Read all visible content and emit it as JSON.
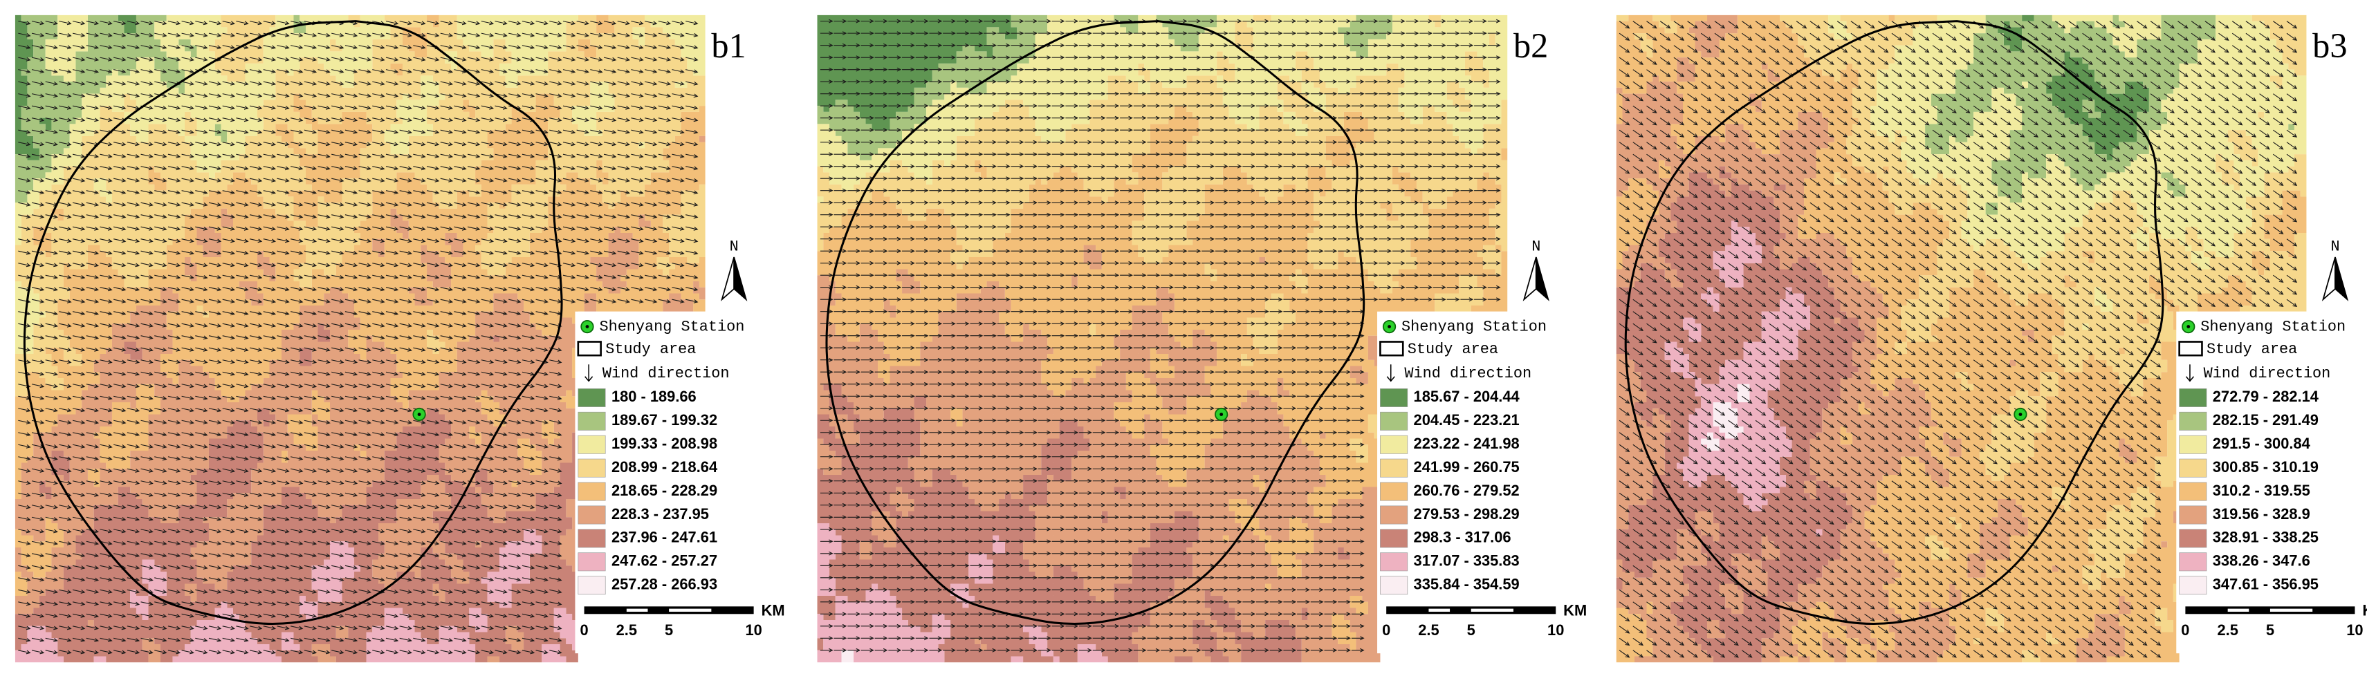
{
  "panels": [
    {
      "label": "b1",
      "north": "N",
      "legend": {
        "station": "Shenyang Station",
        "study_area": "Study area",
        "wind": "Wind direction",
        "classes": [
          {
            "label": "180 - 189.66",
            "color": "#5f9552"
          },
          {
            "label": "189.67 - 199.32",
            "color": "#a8c57f"
          },
          {
            "label": "199.33 - 208.98",
            "color": "#f1eb9f"
          },
          {
            "label": "208.99 - 218.64",
            "color": "#f6d88c"
          },
          {
            "label": "218.65 - 228.29",
            "color": "#f3bf79"
          },
          {
            "label": "228.3 - 237.95",
            "color": "#e3a27e"
          },
          {
            "label": "237.96 - 247.61",
            "color": "#c98377"
          },
          {
            "label": "247.62 - 257.27",
            "color": "#eeb2c1"
          },
          {
            "label": "257.28 - 266.93",
            "color": "#faeef2"
          }
        ]
      },
      "scale_bar": {
        "ticks": [
          "0",
          "2.5",
          "5",
          "10"
        ],
        "unit": "KM"
      }
    },
    {
      "label": "b2",
      "north": "N",
      "legend": {
        "station": "Shenyang Station",
        "study_area": "Study area",
        "wind": "Wind direction",
        "classes": [
          {
            "label": "185.67 - 204.44",
            "color": "#5f9552"
          },
          {
            "label": "204.45 - 223.21",
            "color": "#a8c57f"
          },
          {
            "label": "223.22 - 241.98",
            "color": "#f1eb9f"
          },
          {
            "label": "241.99 - 260.75",
            "color": "#f6d88c"
          },
          {
            "label": "260.76 - 279.52",
            "color": "#f3bf79"
          },
          {
            "label": "279.53 - 298.29",
            "color": "#e3a27e"
          },
          {
            "label": "298.3 - 317.06",
            "color": "#c98377"
          },
          {
            "label": "317.07 - 335.83",
            "color": "#eeb2c1"
          },
          {
            "label": "335.84 - 354.59",
            "color": "#faeef2"
          }
        ]
      },
      "scale_bar": {
        "ticks": [
          "0",
          "2.5",
          "5",
          "10"
        ],
        "unit": "KM"
      }
    },
    {
      "label": "b3",
      "north": "N",
      "legend": {
        "station": "Shenyang Station",
        "study_area": "Study area",
        "wind": "Wind direction",
        "classes": [
          {
            "label": "272.79 - 282.14",
            "color": "#5f9552"
          },
          {
            "label": "282.15 - 291.49",
            "color": "#a8c57f"
          },
          {
            "label": "291.5 - 300.84",
            "color": "#f1eb9f"
          },
          {
            "label": "300.85 - 310.19",
            "color": "#f6d88c"
          },
          {
            "label": "310.2 - 319.55",
            "color": "#f3bf79"
          },
          {
            "label": "319.56 - 328.9",
            "color": "#e3a27e"
          },
          {
            "label": "328.91 - 338.25",
            "color": "#c98377"
          },
          {
            "label": "338.26 - 347.6",
            "color": "#eeb2c1"
          },
          {
            "label": "347.61 - 356.95",
            "color": "#faeef2"
          }
        ]
      },
      "scale_bar": {
        "ticks": [
          "0",
          "2.5",
          "5",
          "10"
        ],
        "unit": "KM"
      }
    }
  ]
}
